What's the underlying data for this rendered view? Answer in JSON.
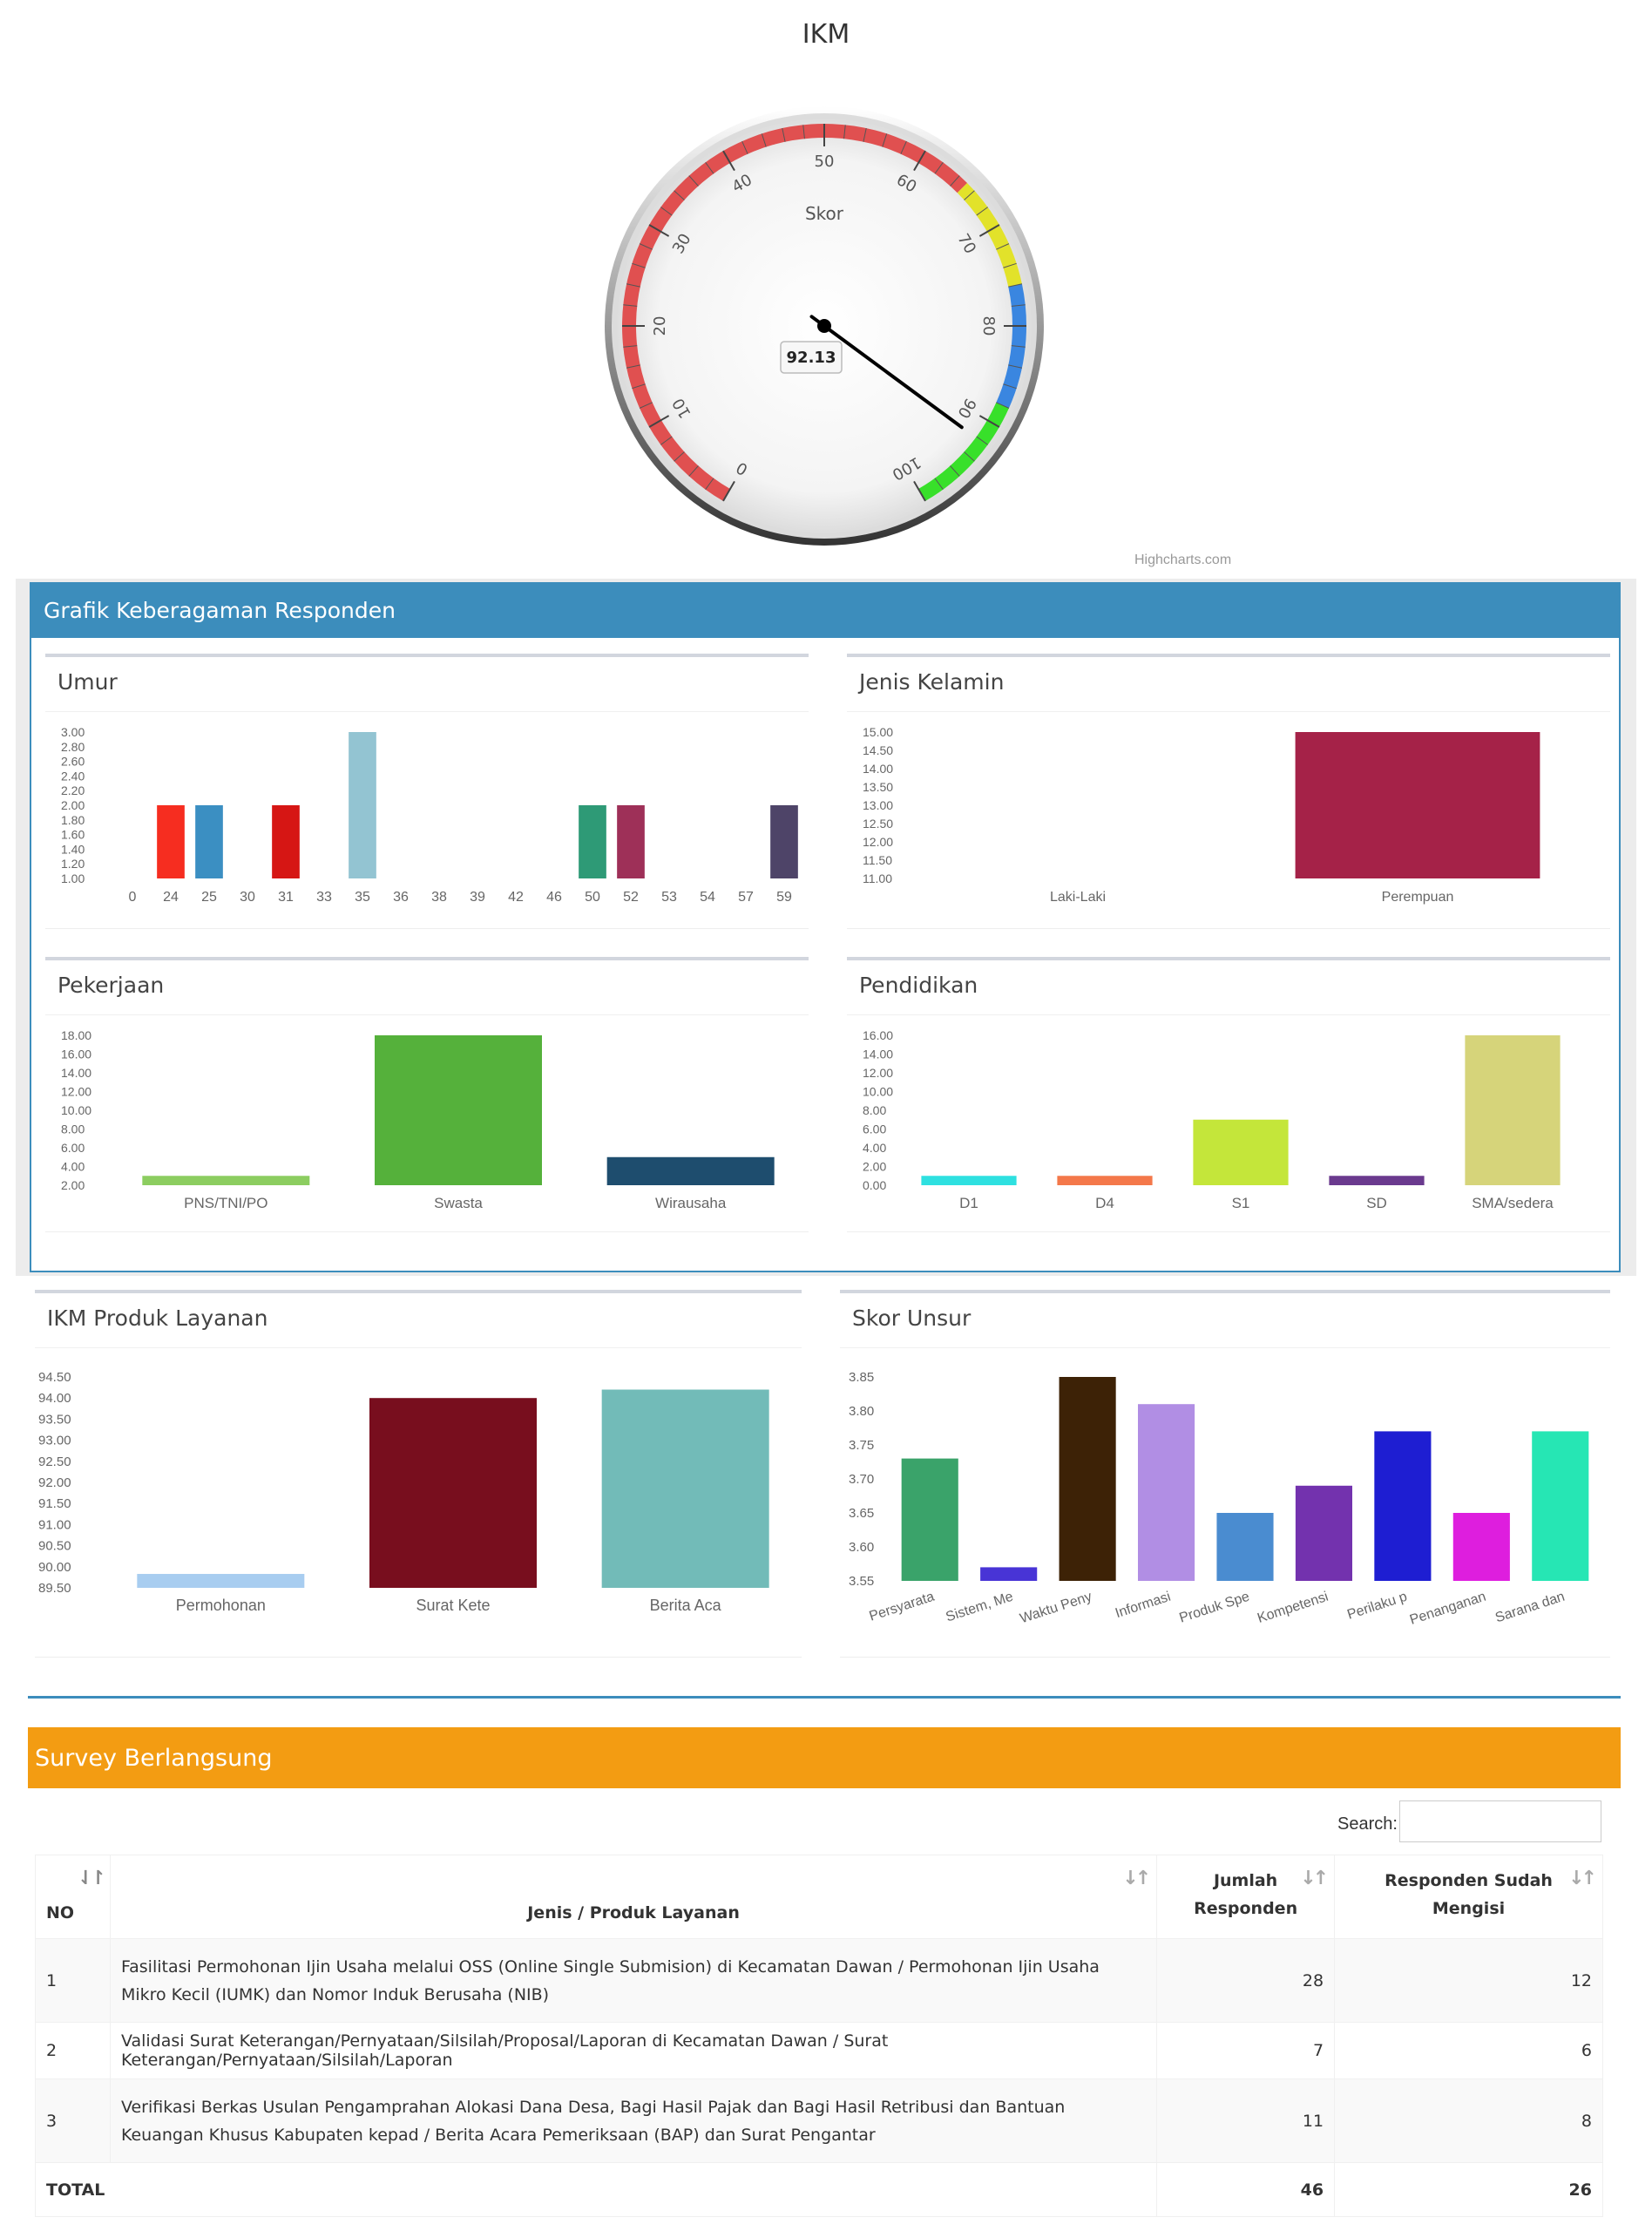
{
  "gauge": {
    "title": "IKM",
    "subtitle": "Skor",
    "value": 92.13,
    "value_label": "92.13",
    "min": 0,
    "max": 100,
    "ticks": [
      "0",
      "10",
      "20",
      "30",
      "40",
      "50",
      "60",
      "70",
      "80",
      "90",
      "100"
    ],
    "bands": [
      {
        "from": 0,
        "to": 65,
        "color": "#e05050"
      },
      {
        "from": 65,
        "to": 76,
        "color": "#e2e22a"
      },
      {
        "from": 76,
        "to": 88,
        "color": "#3a86e0"
      },
      {
        "from": 88,
        "to": 100,
        "color": "#38e02a"
      }
    ],
    "credit": "Highcharts.com"
  },
  "diversity_box": {
    "title": "Grafik Keberagaman Responden"
  },
  "charts": {
    "umur": {
      "title": "Umur",
      "chart_data": {
        "type": "bar",
        "categories": [
          "0",
          "24",
          "25",
          "30",
          "31",
          "33",
          "35",
          "36",
          "38",
          "39",
          "42",
          "46",
          "50",
          "52",
          "53",
          "54",
          "57",
          "59"
        ],
        "values": [
          null,
          2,
          2,
          null,
          2,
          null,
          3,
          null,
          null,
          null,
          null,
          null,
          2,
          2,
          null,
          null,
          null,
          2
        ],
        "colors": [
          "#000000",
          "#f62d20",
          "#3b8fc2",
          "#000000",
          "#d61614",
          "#000000",
          "#93c4d2",
          "#000000",
          "#000000",
          "#000000",
          "#000000",
          "#000000",
          "#2e9a76",
          "#9e3058",
          "#000000",
          "#000000",
          "#000000",
          "#4e4468"
        ],
        "yticks": [
          "3.00",
          "2.80",
          "2.60",
          "2.40",
          "2.20",
          "2.00",
          "1.80",
          "1.60",
          "1.40",
          "1.20",
          "1.00"
        ],
        "ylim": [
          1,
          3
        ]
      }
    },
    "jenis_kelamin": {
      "title": "Jenis Kelamin",
      "chart_data": {
        "type": "bar",
        "categories": [
          "Laki-Laki",
          "Perempuan"
        ],
        "values": [
          11,
          15
        ],
        "colors": [
          "#a52a4a",
          "#a52248"
        ],
        "yticks": [
          "15.00",
          "14.50",
          "14.00",
          "13.50",
          "13.00",
          "12.50",
          "12.00",
          "11.50",
          "11.00"
        ],
        "ylim": [
          11,
          15
        ]
      }
    },
    "pekerjaan": {
      "title": "Pekerjaan",
      "chart_data": {
        "type": "bar",
        "categories": [
          "PNS/TNI/PO",
          "Swasta",
          "Wirausaha"
        ],
        "values": [
          3,
          18,
          5
        ],
        "colors": [
          "#8ccd60",
          "#55b13b",
          "#1e4d6e"
        ],
        "yticks": [
          "18.00",
          "16.00",
          "14.00",
          "12.00",
          "10.00",
          "8.00",
          "6.00",
          "4.00",
          "2.00"
        ],
        "ylim": [
          2,
          18
        ]
      }
    },
    "pendidikan": {
      "title": "Pendidikan",
      "chart_data": {
        "type": "bar",
        "categories": [
          "D1",
          "D4",
          "S1",
          "SD",
          "SMA/sedera"
        ],
        "values": [
          1,
          1,
          7,
          1,
          16
        ],
        "colors": [
          "#2ee0e0",
          "#f4784a",
          "#c4e63a",
          "#6a3a8e",
          "#d6d47a"
        ],
        "yticks": [
          "16.00",
          "14.00",
          "12.00",
          "10.00",
          "8.00",
          "6.00",
          "4.00",
          "2.00",
          "0.00"
        ],
        "ylim": [
          0,
          16
        ]
      }
    },
    "ikm_produk": {
      "title": "IKM Produk Layanan",
      "chart_data": {
        "type": "bar",
        "categories": [
          "Permohonan",
          "Surat Kete",
          "Berita Aca"
        ],
        "values": [
          89.83,
          94,
          94.2
        ],
        "colors": [
          "#a8cdf0",
          "#780e1e",
          "#72bbb8"
        ],
        "yticks": [
          "94.50",
          "94.00",
          "93.50",
          "93.00",
          "92.50",
          "92.00",
          "91.50",
          "91.00",
          "90.50",
          "90.00",
          "89.50"
        ],
        "ylim": [
          89.5,
          94.5
        ]
      }
    },
    "skor_unsur": {
      "title": "Skor Unsur",
      "chart_data": {
        "type": "bar",
        "categories": [
          "Persyarata",
          "Sistem, Me",
          "Waktu Peny",
          "Informasi",
          "Produk Spe",
          "Kompetensi",
          "Perilaku p",
          "Penanganan",
          "Sarana dan"
        ],
        "values": [
          3.73,
          3.57,
          3.85,
          3.81,
          3.65,
          3.69,
          3.77,
          3.65,
          3.77
        ],
        "colors": [
          "#3aa36a",
          "#4834d6",
          "#3d2206",
          "#b18ee4",
          "#4a8cd0",
          "#7332ae",
          "#1e1ed2",
          "#de1ede",
          "#26e6b4"
        ],
        "yticks": [
          "3.85",
          "3.80",
          "3.75",
          "3.70",
          "3.65",
          "3.60",
          "3.55"
        ],
        "ylim": [
          3.55,
          3.85
        ]
      }
    }
  },
  "survey": {
    "title": "Survey Berlangsung",
    "search_label": "Search:",
    "search_value": "",
    "columns": [
      "NO",
      "Jenis / Produk Layanan",
      "Jumlah Responden",
      "Responden Sudah Mengisi"
    ],
    "rows": [
      {
        "no": "1",
        "layanan": "Fasilitasi Permohonan Ijin Usaha melalui OSS (Online Single Submision) di Kecamatan Dawan / Permohonan Ijin Usaha Mikro Kecil (IUMK) dan Nomor Induk Berusaha (NIB)",
        "jumlah": "28",
        "sudah": "12"
      },
      {
        "no": "2",
        "layanan": "Validasi Surat Keterangan/Pernyataan/Silsilah/Proposal/Laporan di Kecamatan Dawan / Surat Keterangan/Pernyataan/Silsilah/Laporan",
        "jumlah": "7",
        "sudah": "6"
      },
      {
        "no": "3",
        "layanan": "Verifikasi Berkas Usulan Pengamprahan Alokasi Dana Desa, Bagi Hasil Pajak dan Bagi Hasil Retribusi dan Bantuan Keuangan Khusus Kabupaten kepad / Berita Acara Pemeriksaan (BAP) dan Surat Pengantar",
        "jumlah": "11",
        "sudah": "8"
      }
    ],
    "total": {
      "label": "TOTAL",
      "jumlah": "46",
      "sudah": "26"
    }
  }
}
